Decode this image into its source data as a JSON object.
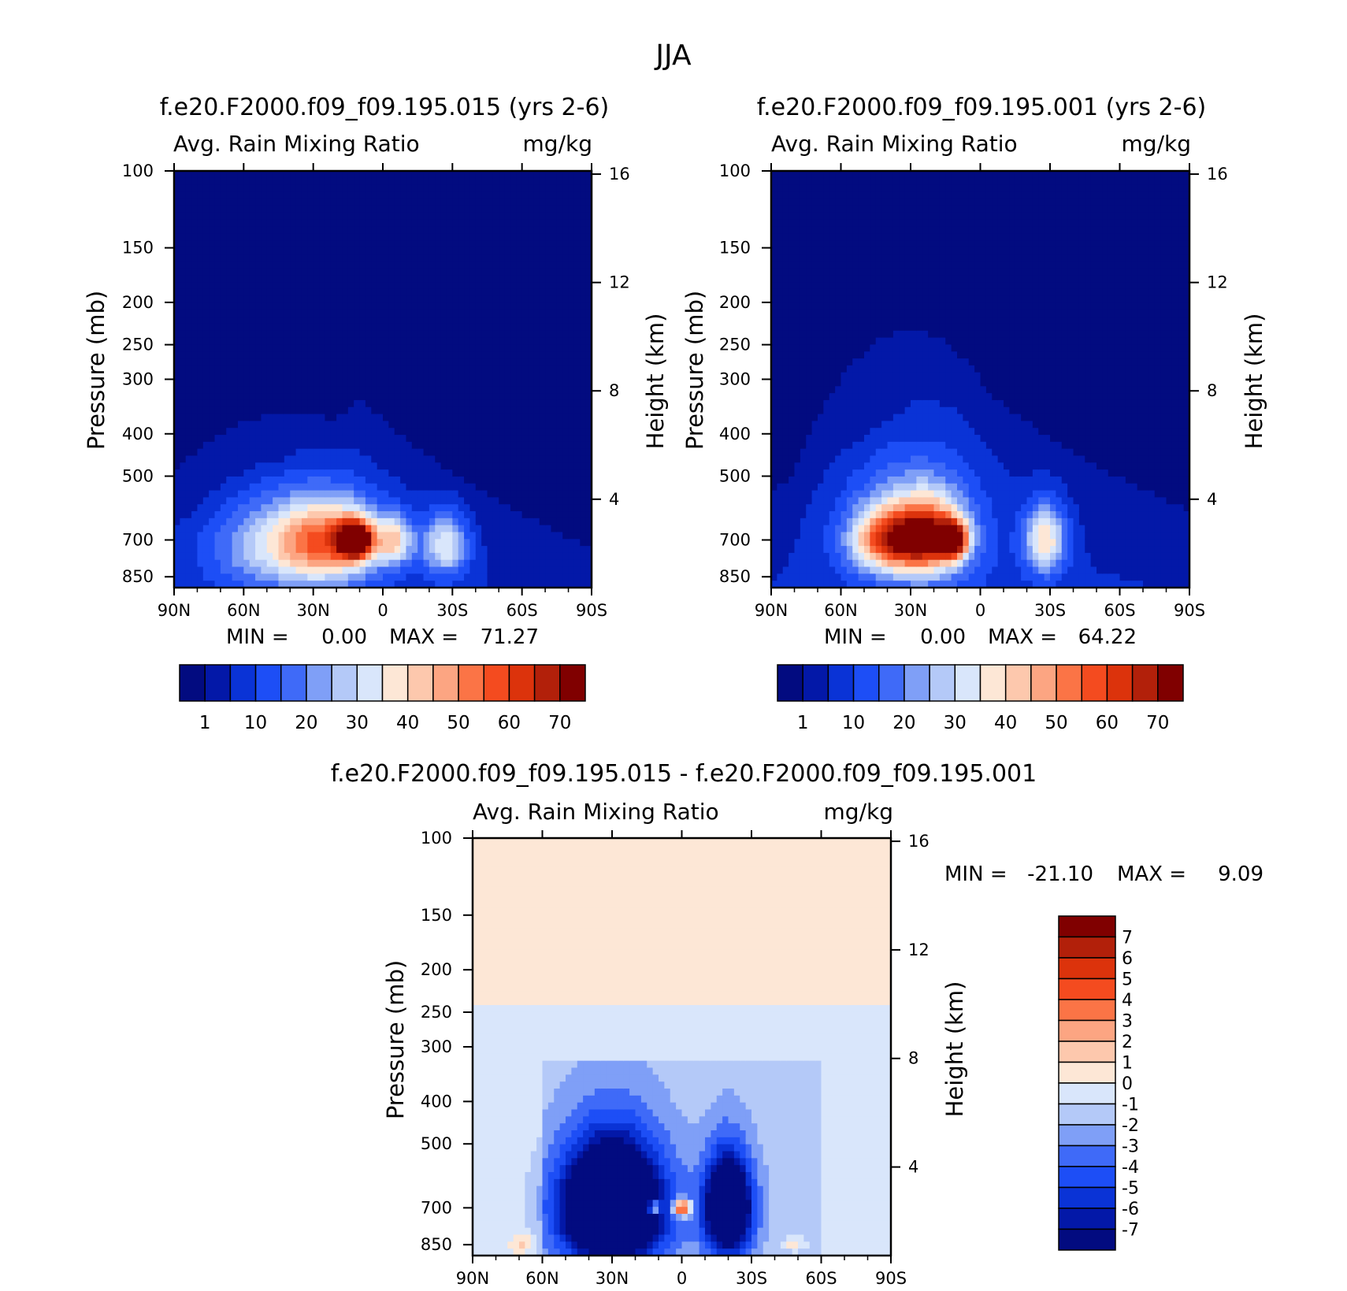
{
  "page": {
    "title": "JJA"
  },
  "colors": {
    "full_field": [
      "#020b80",
      "#0318a8",
      "#0a33d6",
      "#1d4ef6",
      "#3f6af8",
      "#7f9ff7",
      "#b4c9f8",
      "#d9e6fb",
      "#fde7d6",
      "#fdc8ad",
      "#fca582",
      "#fb7446",
      "#f44b1f",
      "#dc330c",
      "#b2200a",
      "#800000"
    ],
    "difference": [
      "#020b80",
      "#0318a8",
      "#0a33d6",
      "#1d4ef6",
      "#3f6af8",
      "#7f9ff7",
      "#b4c9f8",
      "#d9e6fb",
      "#fde7d6",
      "#fdc8ad",
      "#fca582",
      "#fb7446",
      "#f44b1f",
      "#dc330c",
      "#b2200a",
      "#800000"
    ]
  },
  "chart_data": [
    {
      "type": "heatmap",
      "id": "panel-a",
      "title": "f.e20.F2000.f09_f09.195.015 (yrs 2-6)",
      "subtitle_left": "Avg. Rain Mixing Ratio",
      "subtitle_right": "mg/kg",
      "ylabel": "Pressure (mb)",
      "ylabel_right": "Height (km)",
      "x_ticks": [
        "90N",
        "60N",
        "30N",
        "0",
        "30S",
        "60S",
        "90S"
      ],
      "y_ticks": [
        100,
        150,
        200,
        250,
        300,
        400,
        500,
        700,
        850
      ],
      "y_right_ticks": [
        16,
        12,
        8,
        4
      ],
      "stats": {
        "min_label": "MIN =",
        "min": "0.00",
        "max_label": "MAX =",
        "max": "71.27"
      },
      "colorbar_labels": [
        "1",
        "10",
        "20",
        "30",
        "40",
        "50",
        "60",
        "70"
      ],
      "blobs": [
        {
          "lat": 45,
          "p": 720,
          "value": 25,
          "rlat": 32,
          "rp": 190
        },
        {
          "lat": 22,
          "p": 700,
          "value": 38,
          "rlat": 22,
          "rp": 150
        },
        {
          "lat": 12,
          "p": 700,
          "value": 70,
          "rlat": 7,
          "rp": 65
        },
        {
          "lat": -5,
          "p": 700,
          "value": 28,
          "rlat": 8,
          "rp": 90
        },
        {
          "lat": -27,
          "p": 720,
          "value": 30,
          "rlat": 10,
          "rp": 120
        }
      ]
    },
    {
      "type": "heatmap",
      "id": "panel-b",
      "title": "f.e20.F2000.f09_f09.195.001 (yrs 2-6)",
      "subtitle_left": "Avg. Rain Mixing Ratio",
      "subtitle_right": "mg/kg",
      "ylabel": "Pressure (mb)",
      "ylabel_right": "Height (km)",
      "x_ticks": [
        "90N",
        "60N",
        "30N",
        "0",
        "30S",
        "60S",
        "90S"
      ],
      "y_ticks": [
        100,
        150,
        200,
        250,
        300,
        400,
        500,
        700,
        850
      ],
      "y_right_ticks": [
        16,
        12,
        8,
        4
      ],
      "stats": {
        "min_label": "MIN =",
        "min": "0.00",
        "max_label": "MAX =",
        "max": "64.22"
      },
      "colorbar_labels": [
        "1",
        "10",
        "20",
        "30",
        "40",
        "50",
        "60",
        "70"
      ],
      "blobs": [
        {
          "lat": 40,
          "p": 700,
          "value": 40,
          "rlat": 15,
          "rp": 110
        },
        {
          "lat": 22,
          "p": 690,
          "value": 45,
          "rlat": 14,
          "rp": 130
        },
        {
          "lat": 12,
          "p": 700,
          "value": 64,
          "rlat": 6,
          "rp": 60
        },
        {
          "lat": 30,
          "p": 650,
          "value": 22,
          "rlat": 30,
          "rp": 230
        },
        {
          "lat": -28,
          "p": 700,
          "value": 35,
          "rlat": 9,
          "rp": 130
        }
      ]
    },
    {
      "type": "heatmap",
      "id": "panel-diff",
      "title": "f.e20.F2000.f09_f09.195.015 - f.e20.F2000.f09_f09.195.001",
      "subtitle_left": "Avg. Rain Mixing Ratio",
      "subtitle_right": "mg/kg",
      "ylabel": "Pressure (mb)",
      "ylabel_right": "Height (km)",
      "x_ticks": [
        "90N",
        "60N",
        "30N",
        "0",
        "30S",
        "60S",
        "90S"
      ],
      "y_ticks": [
        100,
        150,
        200,
        250,
        300,
        400,
        500,
        700,
        850
      ],
      "y_right_ticks": [
        16,
        12,
        8,
        4
      ],
      "stats": {
        "min_label": "MIN =",
        "min": "-21.10",
        "max_label": "MAX =",
        "max": "9.09"
      },
      "colorbar_labels": [
        "7",
        "6",
        "5",
        "4",
        "3",
        "2",
        "1",
        "0",
        "-1",
        "-2",
        "-3",
        "-4",
        "-5",
        "-6",
        "-7"
      ],
      "blobs": [
        {
          "lat": 30,
          "p": 700,
          "value": -14,
          "rlat": 22,
          "rp": 220
        },
        {
          "lat": -20,
          "p": 700,
          "value": -12,
          "rlat": 10,
          "rp": 180
        },
        {
          "lat": 12,
          "p": 700,
          "value": 7,
          "rlat": 3,
          "rp": 25
        },
        {
          "lat": 0,
          "p": 700,
          "value": 9,
          "rlat": 4,
          "rp": 30
        },
        {
          "lat": 68,
          "p": 840,
          "value": 2,
          "rlat": 5,
          "rp": 45
        },
        {
          "lat": -48,
          "p": 850,
          "value": 2,
          "rlat": 5,
          "rp": 30
        }
      ]
    }
  ]
}
